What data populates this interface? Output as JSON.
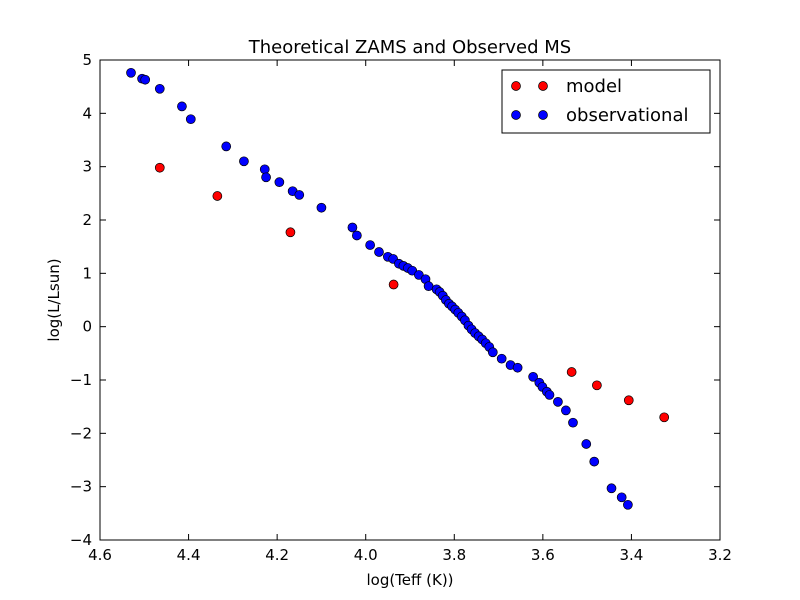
{
  "chart_data": {
    "type": "scatter",
    "title": "Theoretical ZAMS and Observed MS",
    "xlabel": "log(Teff (K))",
    "ylabel": "log(L/Lsun)",
    "xlim": [
      4.6,
      3.2
    ],
    "ylim": [
      -4,
      5
    ],
    "x_inverted": true,
    "grid": false,
    "legend_position": "top-right",
    "x_ticks": [
      4.6,
      4.4,
      4.2,
      4.0,
      3.8,
      3.6,
      3.4,
      3.2
    ],
    "x_tick_labels": [
      "4.6",
      "4.4",
      "4.2",
      "4.0",
      "3.8",
      "3.6",
      "3.4",
      "3.2"
    ],
    "y_ticks": [
      5,
      4,
      3,
      2,
      1,
      0,
      -1,
      -2,
      -3,
      -4
    ],
    "y_tick_labels": [
      "5",
      "4",
      "3",
      "2",
      "1",
      "0",
      "−1",
      "−2",
      "−3",
      "−4"
    ],
    "series": [
      {
        "name": "model",
        "color": "#ff0000",
        "points": [
          {
            "x": 4.465,
            "y": 2.98
          },
          {
            "x": 4.335,
            "y": 2.45
          },
          {
            "x": 4.17,
            "y": 1.77
          },
          {
            "x": 3.937,
            "y": 0.79
          },
          {
            "x": 3.535,
            "y": -0.85
          },
          {
            "x": 3.478,
            "y": -1.1
          },
          {
            "x": 3.406,
            "y": -1.38
          },
          {
            "x": 3.326,
            "y": -1.7
          }
        ]
      },
      {
        "name": "observational",
        "color": "#0000ff",
        "points": [
          {
            "x": 4.53,
            "y": 4.76
          },
          {
            "x": 4.505,
            "y": 4.65
          },
          {
            "x": 4.498,
            "y": 4.63
          },
          {
            "x": 4.465,
            "y": 4.46
          },
          {
            "x": 4.415,
            "y": 4.13
          },
          {
            "x": 4.395,
            "y": 3.89
          },
          {
            "x": 4.315,
            "y": 3.38
          },
          {
            "x": 4.275,
            "y": 3.1
          },
          {
            "x": 4.228,
            "y": 2.95
          },
          {
            "x": 4.225,
            "y": 2.8
          },
          {
            "x": 4.195,
            "y": 2.71
          },
          {
            "x": 4.165,
            "y": 2.54
          },
          {
            "x": 4.15,
            "y": 2.47
          },
          {
            "x": 4.1,
            "y": 2.23
          },
          {
            "x": 4.03,
            "y": 1.86
          },
          {
            "x": 4.02,
            "y": 1.71
          },
          {
            "x": 3.99,
            "y": 1.53
          },
          {
            "x": 3.97,
            "y": 1.4
          },
          {
            "x": 3.95,
            "y": 1.31
          },
          {
            "x": 3.938,
            "y": 1.27
          },
          {
            "x": 3.925,
            "y": 1.18
          },
          {
            "x": 3.915,
            "y": 1.14
          },
          {
            "x": 3.905,
            "y": 1.1
          },
          {
            "x": 3.895,
            "y": 1.05
          },
          {
            "x": 3.88,
            "y": 0.97
          },
          {
            "x": 3.865,
            "y": 0.89
          },
          {
            "x": 3.858,
            "y": 0.76
          },
          {
            "x": 3.84,
            "y": 0.7
          },
          {
            "x": 3.833,
            "y": 0.65
          },
          {
            "x": 3.826,
            "y": 0.58
          },
          {
            "x": 3.819,
            "y": 0.5
          },
          {
            "x": 3.812,
            "y": 0.43
          },
          {
            "x": 3.805,
            "y": 0.38
          },
          {
            "x": 3.798,
            "y": 0.32
          },
          {
            "x": 3.791,
            "y": 0.26
          },
          {
            "x": 3.783,
            "y": 0.19
          },
          {
            "x": 3.776,
            "y": 0.12
          },
          {
            "x": 3.768,
            "y": 0.02
          },
          {
            "x": 3.761,
            "y": -0.05
          },
          {
            "x": 3.753,
            "y": -0.12
          },
          {
            "x": 3.745,
            "y": -0.18
          },
          {
            "x": 3.737,
            "y": -0.24
          },
          {
            "x": 3.729,
            "y": -0.31
          },
          {
            "x": 3.721,
            "y": -0.38
          },
          {
            "x": 3.713,
            "y": -0.48
          },
          {
            "x": 3.693,
            "y": -0.6
          },
          {
            "x": 3.673,
            "y": -0.72
          },
          {
            "x": 3.657,
            "y": -0.77
          },
          {
            "x": 3.622,
            "y": -0.94
          },
          {
            "x": 3.608,
            "y": -1.05
          },
          {
            "x": 3.601,
            "y": -1.13
          },
          {
            "x": 3.591,
            "y": -1.22
          },
          {
            "x": 3.585,
            "y": -1.28
          },
          {
            "x": 3.566,
            "y": -1.41
          },
          {
            "x": 3.548,
            "y": -1.57
          },
          {
            "x": 3.532,
            "y": -1.8
          },
          {
            "x": 3.502,
            "y": -2.2
          },
          {
            "x": 3.484,
            "y": -2.53
          },
          {
            "x": 3.445,
            "y": -3.03
          },
          {
            "x": 3.422,
            "y": -3.2
          },
          {
            "x": 3.408,
            "y": -3.34
          }
        ]
      }
    ]
  }
}
